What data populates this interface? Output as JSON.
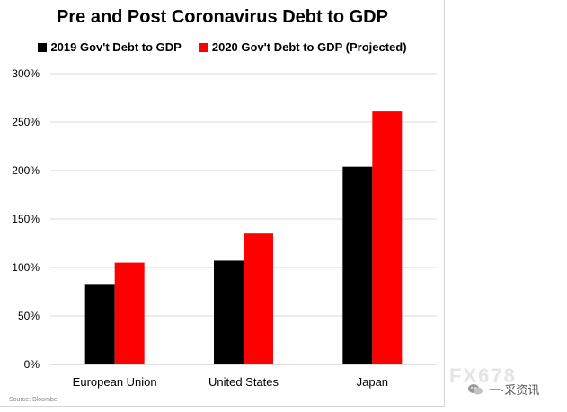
{
  "chart_data": {
    "type": "bar",
    "title": "Pre and Post Coronavirus Debt to GDP",
    "categories": [
      "European Union",
      "United States",
      "Japan"
    ],
    "series": [
      {
        "name": "2019 Gov't Debt to GDP",
        "color": "#000000",
        "values": [
          83,
          107,
          204
        ]
      },
      {
        "name": "2020 Gov't Debt to GDP (Projected)",
        "color": "#ff0000",
        "values": [
          105,
          135,
          261
        ]
      }
    ],
    "y_ticks": [
      0,
      50,
      100,
      150,
      200,
      250,
      300
    ],
    "y_tick_labels": [
      "0%",
      "50%",
      "100%",
      "150%",
      "200%",
      "250%",
      "300%"
    ],
    "ylim": [
      0,
      300
    ],
    "xlabel": "",
    "ylabel": "",
    "legend_position": "top",
    "grid": true
  },
  "source": "Source: Bloombe",
  "watermark": "FX678",
  "wechat_label": "一·采资讯"
}
